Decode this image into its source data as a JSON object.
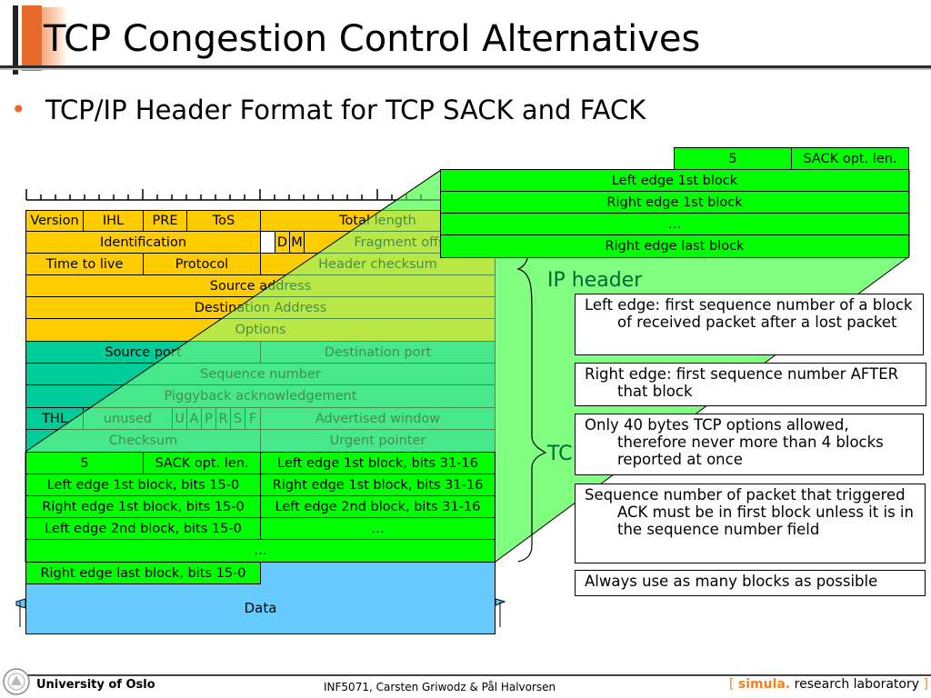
{
  "title": "TCP Congestion Control Alternatives",
  "bullet": "TCP/IP Header Format for TCP SACK and FACK",
  "header_rows": {
    "r1": [
      "Version",
      "IHL",
      "PRE",
      "ToS",
      "Total length"
    ],
    "r2": [
      "Identification",
      "D",
      "M",
      "Fragment offs"
    ],
    "r3": [
      "Time to live",
      "Protocol",
      "Header checksum"
    ],
    "r4": "Source address",
    "r5": "Destination Address",
    "r6": "Options",
    "r7": [
      "Source port",
      "Destination port"
    ],
    "r8": "Sequence number",
    "r9": "Piggyback acknowledgement",
    "r10": [
      "THL",
      "unused",
      "U",
      "A",
      "P",
      "R",
      "S",
      "F",
      "Advertised window"
    ],
    "r11": [
      "Checksum",
      "Urgent pointer"
    ],
    "r12": [
      "5",
      "SACK opt. len.",
      "Left edge 1st block, bits 31-16"
    ],
    "r13": [
      "Left edge 1st block, bits 15-0",
      "Right edge 1st block, bits 31-16"
    ],
    "r14": [
      "Right edge 1st block, bits 15-0",
      "Left edge 2nd block, bits 31-16"
    ],
    "r15": [
      "Left edge 2nd block, bits 15-0",
      "…"
    ],
    "r16": "…",
    "r17": "Right edge last block, bits 15-0",
    "data": "Data"
  },
  "zoom_table": {
    "top": [
      "5",
      "SACK opt. len."
    ],
    "rows": [
      "Left edge 1st block",
      "Right edge 1st block",
      "…",
      "Right edge last block"
    ]
  },
  "labels": {
    "ip_header": "IP header",
    "tcp_header_partial": "TC"
  },
  "notes": [
    "Left edge: first sequence number of a block of received packet after a lost packet",
    "Right edge: first sequence number AFTER that block",
    "Only 40 bytes TCP options allowed, therefore never more than 4 blocks reported at once",
    "Sequence number of packet that triggered ACK must be in first block unless it is in the sequence number field",
    "Always use as many blocks as possible"
  ],
  "footer": {
    "left": "University of Oslo",
    "center": "INF5071, Carsten Griwodz & Pål Halvorsen",
    "right_open": "[",
    "right_brand": "simula",
    "right_dot": ".",
    "right_text": "research laboratory",
    "right_close": "]"
  },
  "colors": {
    "ip": "#ffcc00",
    "tcp": "#00cc99",
    "sack": "#00ff00",
    "zoom": "#80ff80",
    "data": "#66ccff",
    "accent": "#e86a2a"
  },
  "icons": [
    "crest-icon"
  ]
}
